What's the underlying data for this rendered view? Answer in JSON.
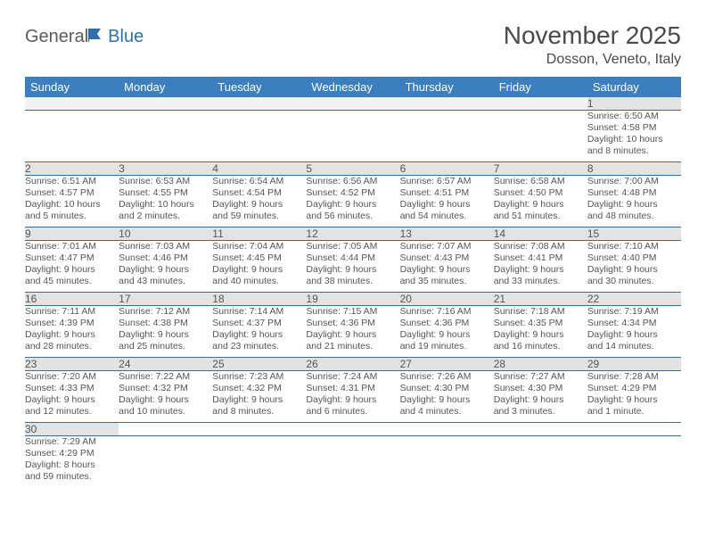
{
  "brand": {
    "part1": "General",
    "part2": "Blue"
  },
  "title": "November 2025",
  "location": "Dosson, Veneto, Italy",
  "colors": {
    "header_bg": "#3b7fbf",
    "header_fg": "#ffffff",
    "daynum_bg": "#e3e3e3",
    "rule": "#2f6fab",
    "text": "#555555",
    "logo_gray": "#5a5a5a",
    "logo_blue": "#2f6fab"
  },
  "weekdays": [
    "Sunday",
    "Monday",
    "Tuesday",
    "Wednesday",
    "Thursday",
    "Friday",
    "Saturday"
  ],
  "weeks": [
    [
      null,
      null,
      null,
      null,
      null,
      null,
      {
        "n": "1",
        "sunrise": "6:50 AM",
        "sunset": "4:58 PM",
        "dl1": "Daylight: 10 hours",
        "dl2": "and 8 minutes."
      }
    ],
    [
      {
        "n": "2",
        "sunrise": "6:51 AM",
        "sunset": "4:57 PM",
        "dl1": "Daylight: 10 hours",
        "dl2": "and 5 minutes."
      },
      {
        "n": "3",
        "sunrise": "6:53 AM",
        "sunset": "4:55 PM",
        "dl1": "Daylight: 10 hours",
        "dl2": "and 2 minutes."
      },
      {
        "n": "4",
        "sunrise": "6:54 AM",
        "sunset": "4:54 PM",
        "dl1": "Daylight: 9 hours",
        "dl2": "and 59 minutes."
      },
      {
        "n": "5",
        "sunrise": "6:56 AM",
        "sunset": "4:52 PM",
        "dl1": "Daylight: 9 hours",
        "dl2": "and 56 minutes."
      },
      {
        "n": "6",
        "sunrise": "6:57 AM",
        "sunset": "4:51 PM",
        "dl1": "Daylight: 9 hours",
        "dl2": "and 54 minutes."
      },
      {
        "n": "7",
        "sunrise": "6:58 AM",
        "sunset": "4:50 PM",
        "dl1": "Daylight: 9 hours",
        "dl2": "and 51 minutes."
      },
      {
        "n": "8",
        "sunrise": "7:00 AM",
        "sunset": "4:48 PM",
        "dl1": "Daylight: 9 hours",
        "dl2": "and 48 minutes."
      }
    ],
    [
      {
        "n": "9",
        "sunrise": "7:01 AM",
        "sunset": "4:47 PM",
        "dl1": "Daylight: 9 hours",
        "dl2": "and 45 minutes."
      },
      {
        "n": "10",
        "sunrise": "7:03 AM",
        "sunset": "4:46 PM",
        "dl1": "Daylight: 9 hours",
        "dl2": "and 43 minutes."
      },
      {
        "n": "11",
        "sunrise": "7:04 AM",
        "sunset": "4:45 PM",
        "dl1": "Daylight: 9 hours",
        "dl2": "and 40 minutes."
      },
      {
        "n": "12",
        "sunrise": "7:05 AM",
        "sunset": "4:44 PM",
        "dl1": "Daylight: 9 hours",
        "dl2": "and 38 minutes."
      },
      {
        "n": "13",
        "sunrise": "7:07 AM",
        "sunset": "4:43 PM",
        "dl1": "Daylight: 9 hours",
        "dl2": "and 35 minutes."
      },
      {
        "n": "14",
        "sunrise": "7:08 AM",
        "sunset": "4:41 PM",
        "dl1": "Daylight: 9 hours",
        "dl2": "and 33 minutes."
      },
      {
        "n": "15",
        "sunrise": "7:10 AM",
        "sunset": "4:40 PM",
        "dl1": "Daylight: 9 hours",
        "dl2": "and 30 minutes."
      }
    ],
    [
      {
        "n": "16",
        "sunrise": "7:11 AM",
        "sunset": "4:39 PM",
        "dl1": "Daylight: 9 hours",
        "dl2": "and 28 minutes."
      },
      {
        "n": "17",
        "sunrise": "7:12 AM",
        "sunset": "4:38 PM",
        "dl1": "Daylight: 9 hours",
        "dl2": "and 25 minutes."
      },
      {
        "n": "18",
        "sunrise": "7:14 AM",
        "sunset": "4:37 PM",
        "dl1": "Daylight: 9 hours",
        "dl2": "and 23 minutes."
      },
      {
        "n": "19",
        "sunrise": "7:15 AM",
        "sunset": "4:36 PM",
        "dl1": "Daylight: 9 hours",
        "dl2": "and 21 minutes."
      },
      {
        "n": "20",
        "sunrise": "7:16 AM",
        "sunset": "4:36 PM",
        "dl1": "Daylight: 9 hours",
        "dl2": "and 19 minutes."
      },
      {
        "n": "21",
        "sunrise": "7:18 AM",
        "sunset": "4:35 PM",
        "dl1": "Daylight: 9 hours",
        "dl2": "and 16 minutes."
      },
      {
        "n": "22",
        "sunrise": "7:19 AM",
        "sunset": "4:34 PM",
        "dl1": "Daylight: 9 hours",
        "dl2": "and 14 minutes."
      }
    ],
    [
      {
        "n": "23",
        "sunrise": "7:20 AM",
        "sunset": "4:33 PM",
        "dl1": "Daylight: 9 hours",
        "dl2": "and 12 minutes."
      },
      {
        "n": "24",
        "sunrise": "7:22 AM",
        "sunset": "4:32 PM",
        "dl1": "Daylight: 9 hours",
        "dl2": "and 10 minutes."
      },
      {
        "n": "25",
        "sunrise": "7:23 AM",
        "sunset": "4:32 PM",
        "dl1": "Daylight: 9 hours",
        "dl2": "and 8 minutes."
      },
      {
        "n": "26",
        "sunrise": "7:24 AM",
        "sunset": "4:31 PM",
        "dl1": "Daylight: 9 hours",
        "dl2": "and 6 minutes."
      },
      {
        "n": "27",
        "sunrise": "7:26 AM",
        "sunset": "4:30 PM",
        "dl1": "Daylight: 9 hours",
        "dl2": "and 4 minutes."
      },
      {
        "n": "28",
        "sunrise": "7:27 AM",
        "sunset": "4:30 PM",
        "dl1": "Daylight: 9 hours",
        "dl2": "and 3 minutes."
      },
      {
        "n": "29",
        "sunrise": "7:28 AM",
        "sunset": "4:29 PM",
        "dl1": "Daylight: 9 hours",
        "dl2": "and 1 minute."
      }
    ],
    [
      {
        "n": "30",
        "sunrise": "7:29 AM",
        "sunset": "4:29 PM",
        "dl1": "Daylight: 8 hours",
        "dl2": "and 59 minutes."
      },
      null,
      null,
      null,
      null,
      null,
      null
    ]
  ],
  "labels": {
    "sunrise": "Sunrise: ",
    "sunset": "Sunset: "
  }
}
